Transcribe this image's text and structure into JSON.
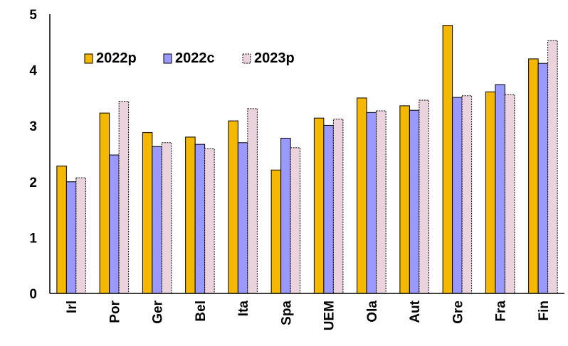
{
  "chart_data": {
    "type": "bar",
    "categories": [
      "Irl",
      "Por",
      "Ger",
      "Bel",
      "Ita",
      "Spa",
      "UEM",
      "Ola",
      "Aut",
      "Gre",
      "Fra",
      "Fin"
    ],
    "series": [
      {
        "name": "2022p",
        "color": "#f5b800",
        "values": [
          2.28,
          3.23,
          2.88,
          2.8,
          3.09,
          2.21,
          3.14,
          3.5,
          3.36,
          4.8,
          3.61,
          4.2
        ]
      },
      {
        "name": "2022c",
        "color": "#9999ff",
        "values": [
          2.0,
          2.48,
          2.63,
          2.67,
          2.7,
          2.78,
          3.01,
          3.24,
          3.28,
          3.51,
          3.74,
          4.12
        ]
      },
      {
        "name": "2023p",
        "color": "#ead3dc",
        "values": [
          2.07,
          3.44,
          2.7,
          2.59,
          3.31,
          2.61,
          3.12,
          3.27,
          3.46,
          3.54,
          3.56,
          4.53
        ]
      }
    ],
    "yticks": [
      "0",
      "1",
      "2",
      "3",
      "4",
      "5"
    ],
    "ylim": [
      0,
      5
    ],
    "grid": false,
    "legend_position": "top-left"
  }
}
